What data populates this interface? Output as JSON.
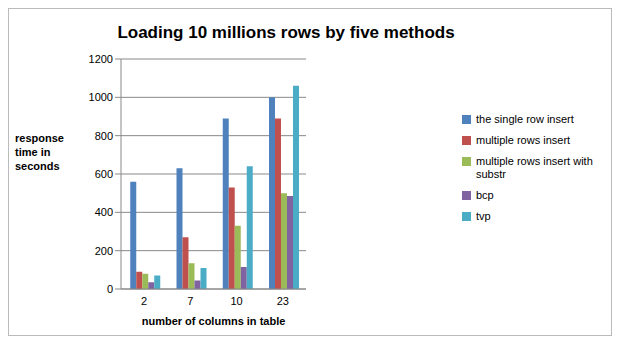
{
  "chart_data": {
    "type": "bar",
    "title": "Loading 10 millions rows by five methods",
    "x_label": "number of columns in table",
    "y_label": "response time in seconds",
    "categories": [
      "2",
      "7",
      "10",
      "23"
    ],
    "series": [
      {
        "name": "the single row insert",
        "color": "#4f81bd",
        "values": [
          560,
          630,
          890,
          1000
        ]
      },
      {
        "name": "multiple rows insert",
        "color": "#c0504d",
        "values": [
          90,
          270,
          530,
          890
        ]
      },
      {
        "name": "multiple rows insert with substr",
        "color": "#9bbb59",
        "values": [
          80,
          135,
          330,
          500
        ]
      },
      {
        "name": "bcp",
        "color": "#8064a2",
        "values": [
          35,
          45,
          115,
          485
        ]
      },
      {
        "name": "tvp",
        "color": "#4bacc6",
        "values": [
          70,
          110,
          640,
          1060
        ]
      }
    ],
    "ylim": [
      0,
      1200
    ],
    "yticks": [
      0,
      200,
      400,
      600,
      800,
      1000,
      1200
    ],
    "grid": true,
    "legend": "right"
  }
}
